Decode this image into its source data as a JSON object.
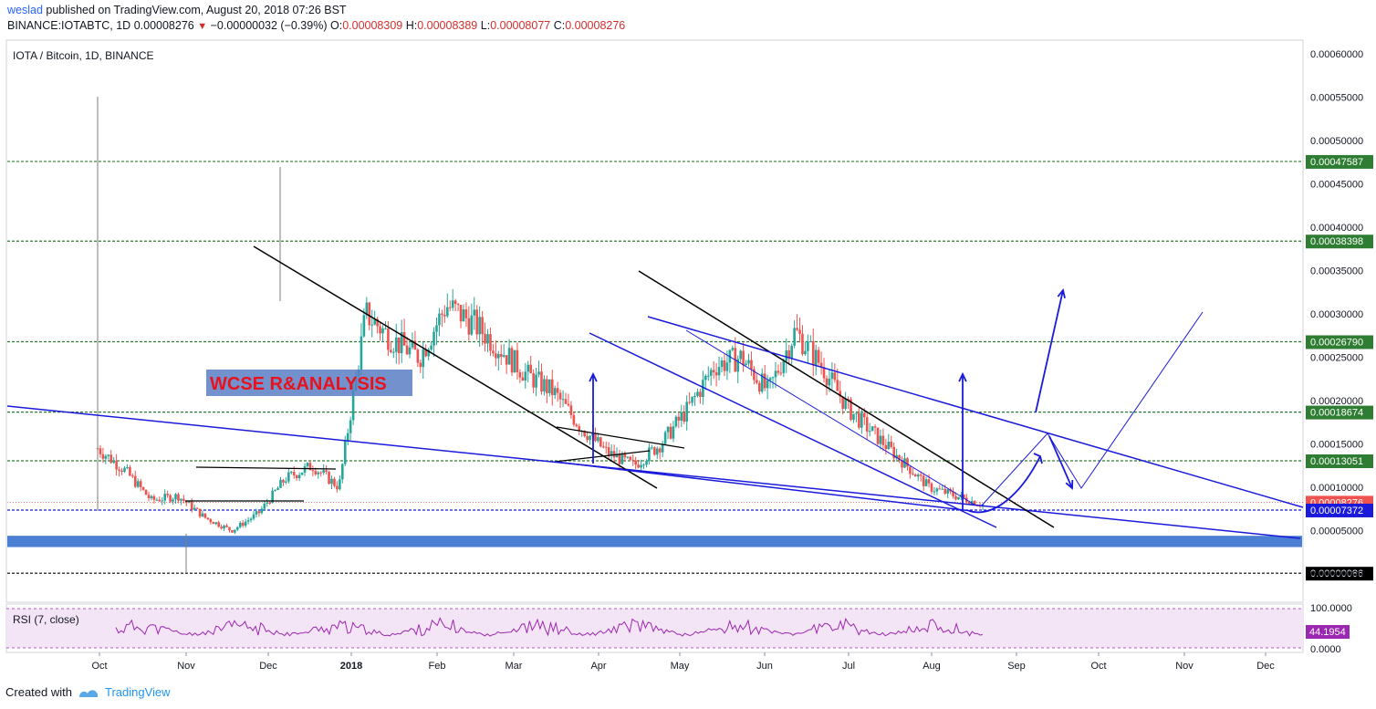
{
  "header": {
    "user": "weslad",
    "published_text": "published on TradingView.com, August 20, 2018 07:26 BST",
    "symbol": "BINANCE:IOTABTC, 1D",
    "price": "0.00008276",
    "change": "−0.00000032 (−0.39%)",
    "o_label": "O:",
    "o_value": "0.00008309",
    "h_label": "H:",
    "h_value": "0.00008389",
    "l_label": "L:",
    "l_value": "0.00008077",
    "c_label": "C:",
    "c_value": "0.00008276"
  },
  "chart_title": "IOTA / Bitcoin, 1D, BINANCE",
  "watermark": "WCSE R&ANALYSIS",
  "rsi_label": "RSI (7, close)",
  "footer": {
    "created_with": "Created with",
    "brand": "TradingView"
  },
  "colors": {
    "up": "#26a69a",
    "down": "#ef5350",
    "trendline_blue": "#1a1adb",
    "trendline_black": "#000000",
    "level_green": "#2e7d32",
    "support_band": "#4a7fd4",
    "rsi_line": "#9c27b0",
    "rsi_bg": "#f3e5f5"
  },
  "chart_data": {
    "type": "candlestick",
    "title": "IOTA / Bitcoin, 1D, BINANCE",
    "xlabel": "",
    "ylabel": "",
    "ylim": [
      0.0,
      0.0006
    ],
    "y_ticks": [
      "0.00060000",
      "0.00055000",
      "0.00050000",
      "0.00045000",
      "0.00040000",
      "0.00035000",
      "0.00030000",
      "0.00025000",
      "0.00020000",
      "0.00015000",
      "0.00010000",
      "0.00005000",
      "0.00000000"
    ],
    "x_ticks": [
      "Oct",
      "Nov",
      "Dec",
      "2018",
      "Feb",
      "Mar",
      "Apr",
      "May",
      "Jun",
      "Jul",
      "Aug",
      "Sep",
      "Oct",
      "Nov",
      "Dec"
    ],
    "horizontal_levels": [
      {
        "value": 0.00047587,
        "label": "0.00047587",
        "color": "#2e7d32"
      },
      {
        "value": 0.00038398,
        "label": "0.00038398",
        "color": "#2e7d32"
      },
      {
        "value": 0.0002679,
        "label": "0.00026790",
        "color": "#2e7d32"
      },
      {
        "value": 0.00018674,
        "label": "0.00018674",
        "color": "#2e7d32"
      },
      {
        "value": 0.00013051,
        "label": "0.00013051",
        "color": "#2e7d32"
      },
      {
        "value": 8.276e-05,
        "label": "0.00008276",
        "color": "#ef5350"
      },
      {
        "value": 7.372e-05,
        "label": "0.00007372",
        "color": "#1a1adb"
      },
      {
        "value": 8.6e-07,
        "label": "0.00000086",
        "color": "#000000"
      }
    ],
    "support_band": [
      3.1e-05,
      4.4e-05
    ],
    "series": [
      {
        "name": "IOTA / Bitcoin",
        "close_approx": [
          0.000145,
          0.00012,
          8.5e-05,
          9e-05,
          6.5e-05,
          5e-05,
          7e-05,
          0.00011,
          0.000125,
          0.0001,
          0.0003,
          0.00027,
          0.00025,
          0.00031,
          0.00029,
          0.00026,
          0.00023,
          0.00021,
          0.00017,
          0.00014,
          0.000125,
          0.00015,
          0.00019,
          0.00024,
          0.00025,
          0.00021,
          0.00028,
          0.00024,
          0.00019,
          0.00016,
          0.00013,
          0.0001,
          9e-05,
          8e-05
        ]
      }
    ],
    "rsi": {
      "name": "RSI (7, close)",
      "ylim": [
        0,
        100
      ],
      "current": "44.1954",
      "ticks": [
        "100.0000",
        "0.0000"
      ]
    }
  }
}
